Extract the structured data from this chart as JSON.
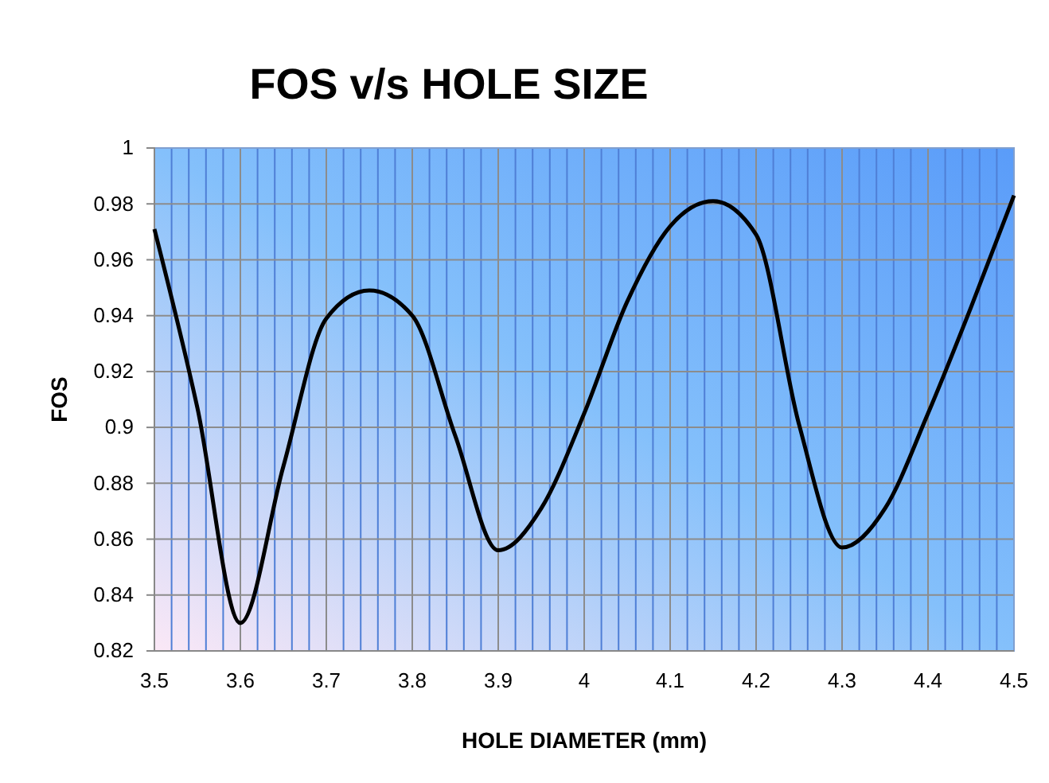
{
  "chart_data": {
    "type": "line",
    "title": "FOS v/s HOLE SIZE",
    "xlabel": "HOLE DIAMETER (mm)",
    "ylabel": "FOS",
    "x": [
      3.5,
      3.55,
      3.6,
      3.65,
      3.7,
      3.75,
      3.8,
      3.85,
      3.9,
      3.95,
      4.0,
      4.05,
      4.1,
      4.15,
      4.2,
      4.25,
      4.3,
      4.35,
      4.4,
      4.45,
      4.5
    ],
    "series": [
      {
        "color": "#000000",
        "values": [
          0.971,
          0.907,
          0.83,
          0.886,
          0.939,
          0.949,
          0.94,
          0.897,
          0.856,
          0.871,
          0.905,
          0.945,
          0.972,
          0.981,
          0.969,
          0.901,
          0.857,
          0.871,
          0.905,
          0.943,
          0.983
        ]
      }
    ],
    "xlim": [
      3.5,
      4.5
    ],
    "xticks": [
      3.5,
      {
        "value": 3.52,
        "label": null
      },
      {
        "value": 3.54,
        "label": null
      },
      {
        "value": 3.56,
        "label": null
      },
      {
        "value": 3.58,
        "label": null
      },
      3.6,
      {
        "value": 3.62,
        "label": null
      },
      {
        "value": 3.64,
        "label": null
      },
      {
        "value": 3.66,
        "label": null
      },
      {
        "value": 3.68,
        "label": null
      },
      3.7,
      {
        "value": 3.72,
        "label": null
      },
      {
        "value": 3.74,
        "label": null
      },
      {
        "value": 3.76,
        "label": null
      },
      {
        "value": 3.78,
        "label": null
      },
      3.8,
      {
        "value": 3.82,
        "label": null
      },
      {
        "value": 3.84,
        "label": null
      },
      {
        "value": 3.86,
        "label": null
      },
      {
        "value": 3.88,
        "label": null
      },
      3.9,
      {
        "value": 3.92,
        "label": null
      },
      {
        "value": 3.94,
        "label": null
      },
      {
        "value": 3.96,
        "label": null
      },
      {
        "value": 3.98,
        "label": null
      },
      4,
      {
        "value": 4.02,
        "label": null
      },
      {
        "value": 4.04,
        "label": null
      },
      {
        "value": 4.06,
        "label": null
      },
      {
        "value": 4.08,
        "label": null
      },
      4.1,
      {
        "value": 4.12,
        "label": null
      },
      {
        "value": 4.14,
        "label": null
      },
      {
        "value": 4.16,
        "label": null
      },
      {
        "value": 4.18,
        "label": null
      },
      4.2,
      {
        "value": 4.22,
        "label": null
      },
      {
        "value": 4.24,
        "label": null
      },
      {
        "value": 4.26,
        "label": null
      },
      {
        "value": 4.28,
        "label": null
      },
      4.3,
      {
        "value": 4.32,
        "label": null
      },
      {
        "value": 4.34,
        "label": null
      },
      {
        "value": 4.36,
        "label": null
      },
      {
        "value": 4.38,
        "label": null
      },
      4.4,
      {
        "value": 4.42,
        "label": null
      },
      {
        "value": 4.44,
        "label": null
      },
      {
        "value": 4.46,
        "label": null
      },
      {
        "value": 4.48,
        "label": null
      },
      4.5
    ],
    "ylim": [
      0.82,
      1
    ],
    "yticks": [
      0.82,
      0.84,
      0.86,
      0.88,
      0.9,
      0.92,
      0.94,
      0.96,
      0.98,
      1
    ],
    "grid": true,
    "marker": "none",
    "line_style": "solid"
  }
}
